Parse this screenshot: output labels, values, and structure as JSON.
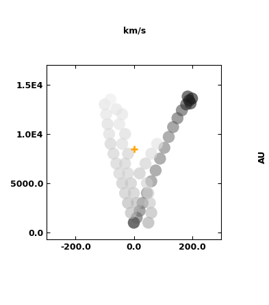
{
  "chart_data": {
    "type": "scatter",
    "title": "km/s",
    "y_label": "AU",
    "xlim": [
      -300,
      300
    ],
    "xticks": [
      {
        "value": -200,
        "label": "-200.0"
      },
      {
        "value": 0,
        "label": "0.0"
      },
      {
        "value": 200,
        "label": "200.0"
      }
    ],
    "ylim": [
      -700,
      17000
    ],
    "yticks": [
      {
        "value": 0,
        "label": "0.0"
      },
      {
        "value": 5000,
        "label": "5000.0"
      },
      {
        "value": 10000,
        "label": "1.0E4"
      },
      {
        "value": 15000,
        "label": "1.5E4"
      }
    ],
    "grid": false,
    "value_range": [
      0,
      1
    ],
    "series": [
      {
        "type": "scatter",
        "marker": "o",
        "color": "Greys",
        "x": [
          0,
          10,
          20,
          30,
          45,
          60,
          75,
          90,
          105,
          120,
          135,
          150,
          165,
          180,
          190,
          200,
          185,
          195,
          -10,
          -20,
          -30,
          -40,
          -50,
          -60,
          -70,
          -80,
          -85,
          -90,
          -95,
          -100,
          -80,
          50,
          60,
          55,
          50,
          45,
          10,
          0,
          -10,
          -20,
          -30,
          -20,
          -40,
          -30,
          -50,
          -40,
          -60,
          20,
          40,
          60,
          80
        ],
        "y": [
          1000,
          1500,
          2200,
          3000,
          4000,
          5200,
          6300,
          7500,
          8600,
          9700,
          10700,
          11600,
          12400,
          13000,
          13400,
          13600,
          13800,
          13100,
          2000,
          3000,
          4000,
          5000,
          6000,
          7000,
          8000,
          9000,
          10000,
          11000,
          12000,
          13000,
          13500,
          1000,
          2000,
          3000,
          4000,
          5000,
          3000,
          4000,
          5000,
          6000,
          7000,
          8000,
          9000,
          10000,
          11000,
          12000,
          12500,
          6000,
          7000,
          8000,
          9000
        ],
        "values": [
          0.95,
          0.7,
          0.65,
          0.6,
          0.6,
          0.6,
          0.6,
          0.6,
          0.6,
          0.6,
          0.65,
          0.7,
          0.75,
          0.85,
          0.95,
          0.95,
          0.9,
          0.9,
          0.4,
          0.4,
          0.35,
          0.35,
          0.3,
          0.3,
          0.3,
          0.3,
          0.25,
          0.25,
          0.2,
          0.2,
          0.15,
          0.45,
          0.4,
          0.35,
          0.3,
          0.3,
          0.4,
          0.35,
          0.35,
          0.3,
          0.3,
          0.3,
          0.25,
          0.25,
          0.2,
          0.2,
          0.2,
          0.35,
          0.3,
          0.25,
          0.2
        ]
      },
      {
        "type": "scatter",
        "marker": "+",
        "color": "#ffa500",
        "x": [
          0
        ],
        "y": [
          8500
        ]
      }
    ]
  }
}
